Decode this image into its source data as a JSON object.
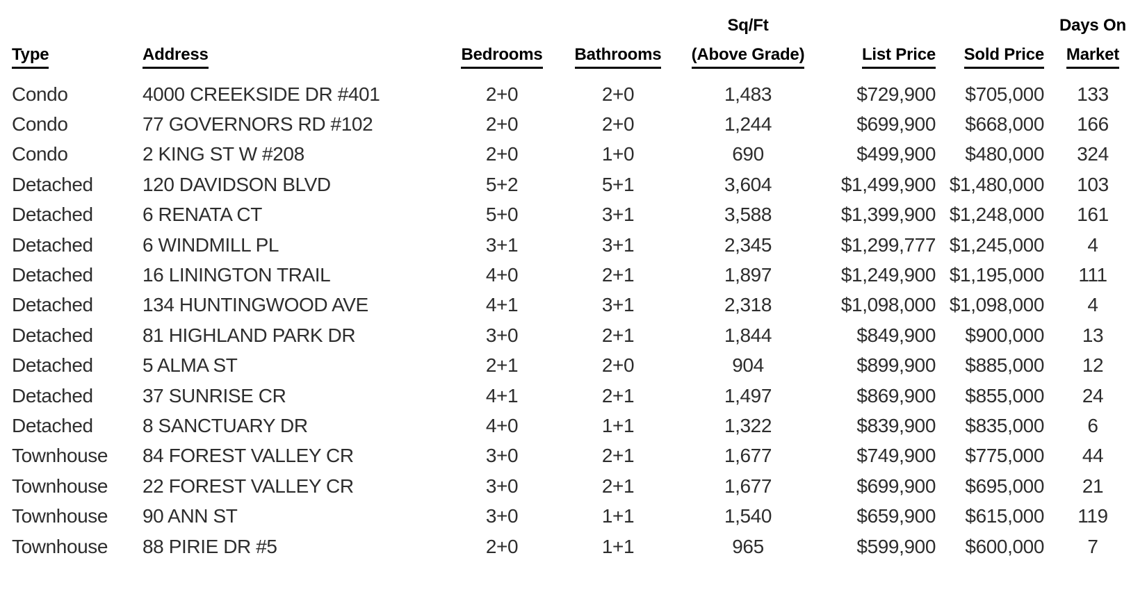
{
  "chart_data": {
    "type": "table",
    "title": "",
    "background": "#ffffff",
    "header_color": "#000000",
    "text_color": "#2d2d2d",
    "columns": [
      {
        "id": "type",
        "label_top": "",
        "label": "Type",
        "align": "left"
      },
      {
        "id": "address",
        "label_top": "",
        "label": "Address",
        "align": "left"
      },
      {
        "id": "bedrooms",
        "label_top": "",
        "label": "Bedrooms",
        "align": "center"
      },
      {
        "id": "bathrooms",
        "label_top": "",
        "label": "Bathrooms",
        "align": "center"
      },
      {
        "id": "sqft-above-grade",
        "label_top": "Sq/Ft",
        "label": "(Above Grade)",
        "align": "center"
      },
      {
        "id": "list-price",
        "label_top": "",
        "label": "List Price",
        "align": "right"
      },
      {
        "id": "sold-price",
        "label_top": "",
        "label": "Sold Price",
        "align": "right"
      },
      {
        "id": "days-on-market",
        "label_top": "Days On",
        "label": "Market",
        "align": "center"
      }
    ],
    "rows": [
      [
        "Condo",
        "4000 CREEKSIDE DR #401",
        "2+0",
        "2+0",
        "1,483",
        "$729,900",
        "$705,000",
        "133"
      ],
      [
        "Condo",
        "77 GOVERNORS RD #102",
        "2+0",
        "2+0",
        "1,244",
        "$699,900",
        "$668,000",
        "166"
      ],
      [
        "Condo",
        "2 KING ST W #208",
        "2+0",
        "1+0",
        "690",
        "$499,900",
        "$480,000",
        "324"
      ],
      [
        "Detached",
        "120 DAVIDSON BLVD",
        "5+2",
        "5+1",
        "3,604",
        "$1,499,900",
        "$1,480,000",
        "103"
      ],
      [
        "Detached",
        "6 RENATA CT",
        "5+0",
        "3+1",
        "3,588",
        "$1,399,900",
        "$1,248,000",
        "161"
      ],
      [
        "Detached",
        "6 WINDMILL PL",
        "3+1",
        "3+1",
        "2,345",
        "$1,299,777",
        "$1,245,000",
        "4"
      ],
      [
        "Detached",
        "16 LININGTON TRAIL",
        "4+0",
        "2+1",
        "1,897",
        "$1,249,900",
        "$1,195,000",
        "111"
      ],
      [
        "Detached",
        "134 HUNTINGWOOD AVE",
        "4+1",
        "3+1",
        "2,318",
        "$1,098,000",
        "$1,098,000",
        "4"
      ],
      [
        "Detached",
        "81 HIGHLAND PARK DR",
        "3+0",
        "2+1",
        "1,844",
        "$849,900",
        "$900,000",
        "13"
      ],
      [
        "Detached",
        "5 ALMA ST",
        "2+1",
        "2+0",
        "904",
        "$899,900",
        "$885,000",
        "12"
      ],
      [
        "Detached",
        "37 SUNRISE CR",
        "4+1",
        "2+1",
        "1,497",
        "$869,900",
        "$855,000",
        "24"
      ],
      [
        "Detached",
        "8 SANCTUARY DR",
        "4+0",
        "1+1",
        "1,322",
        "$839,900",
        "$835,000",
        "6"
      ],
      [
        "Townhouse",
        "84 FOREST VALLEY CR",
        "3+0",
        "2+1",
        "1,677",
        "$749,900",
        "$775,000",
        "44"
      ],
      [
        "Townhouse",
        "22 FOREST VALLEY CR",
        "3+0",
        "2+1",
        "1,677",
        "$699,900",
        "$695,000",
        "21"
      ],
      [
        "Townhouse",
        "90 ANN ST",
        "3+0",
        "1+1",
        "1,540",
        "$659,900",
        "$615,000",
        "119"
      ],
      [
        "Townhouse",
        "88 PIRIE DR #5",
        "2+0",
        "1+1",
        "965",
        "$599,900",
        "$600,000",
        "7"
      ]
    ]
  }
}
